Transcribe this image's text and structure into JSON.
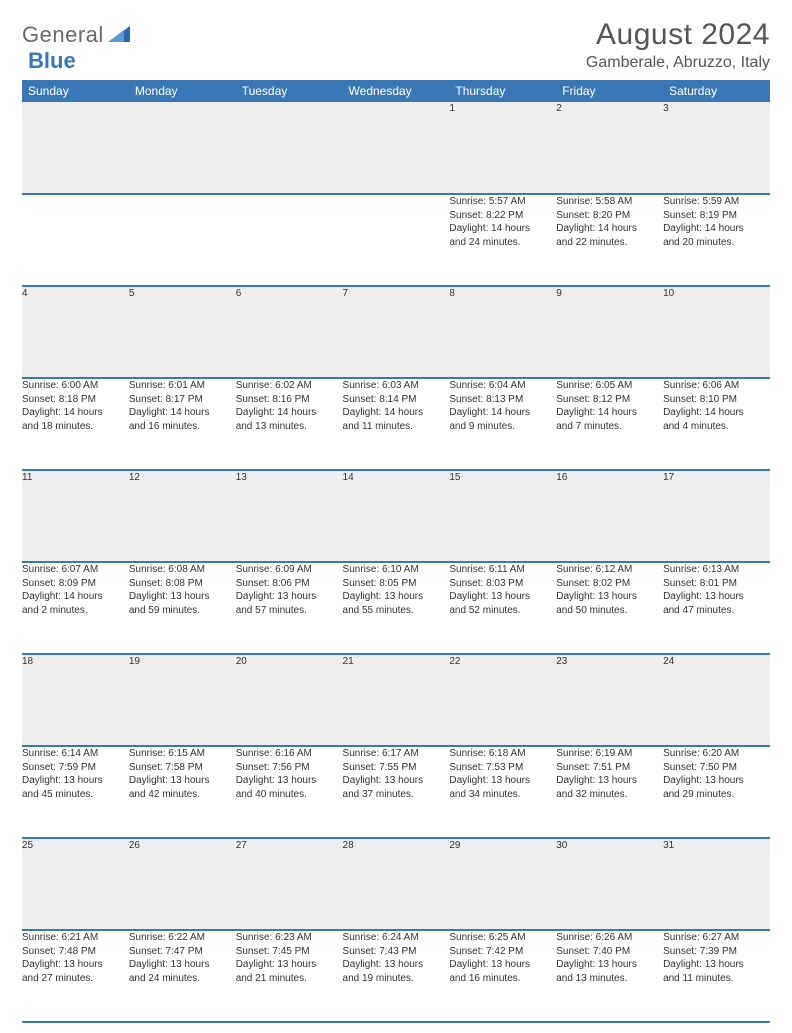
{
  "logo": {
    "partA": "General",
    "partB": "Blue"
  },
  "title": "August 2024",
  "location": "Gamberale, Abruzzo, Italy",
  "header_bg": "#3a78b5",
  "daynum_bg": "#eeeeee",
  "rule_color": "#3a78b5",
  "text_color": "#333333",
  "day_names": [
    "Sunday",
    "Monday",
    "Tuesday",
    "Wednesday",
    "Thursday",
    "Friday",
    "Saturday"
  ],
  "weeks": [
    [
      null,
      null,
      null,
      null,
      {
        "n": "1",
        "sr": "Sunrise: 5:57 AM",
        "ss": "Sunset: 8:22 PM",
        "d1": "Daylight: 14 hours",
        "d2": "and 24 minutes."
      },
      {
        "n": "2",
        "sr": "Sunrise: 5:58 AM",
        "ss": "Sunset: 8:20 PM",
        "d1": "Daylight: 14 hours",
        "d2": "and 22 minutes."
      },
      {
        "n": "3",
        "sr": "Sunrise: 5:59 AM",
        "ss": "Sunset: 8:19 PM",
        "d1": "Daylight: 14 hours",
        "d2": "and 20 minutes."
      }
    ],
    [
      {
        "n": "4",
        "sr": "Sunrise: 6:00 AM",
        "ss": "Sunset: 8:18 PM",
        "d1": "Daylight: 14 hours",
        "d2": "and 18 minutes."
      },
      {
        "n": "5",
        "sr": "Sunrise: 6:01 AM",
        "ss": "Sunset: 8:17 PM",
        "d1": "Daylight: 14 hours",
        "d2": "and 16 minutes."
      },
      {
        "n": "6",
        "sr": "Sunrise: 6:02 AM",
        "ss": "Sunset: 8:16 PM",
        "d1": "Daylight: 14 hours",
        "d2": "and 13 minutes."
      },
      {
        "n": "7",
        "sr": "Sunrise: 6:03 AM",
        "ss": "Sunset: 8:14 PM",
        "d1": "Daylight: 14 hours",
        "d2": "and 11 minutes."
      },
      {
        "n": "8",
        "sr": "Sunrise: 6:04 AM",
        "ss": "Sunset: 8:13 PM",
        "d1": "Daylight: 14 hours",
        "d2": "and 9 minutes."
      },
      {
        "n": "9",
        "sr": "Sunrise: 6:05 AM",
        "ss": "Sunset: 8:12 PM",
        "d1": "Daylight: 14 hours",
        "d2": "and 7 minutes."
      },
      {
        "n": "10",
        "sr": "Sunrise: 6:06 AM",
        "ss": "Sunset: 8:10 PM",
        "d1": "Daylight: 14 hours",
        "d2": "and 4 minutes."
      }
    ],
    [
      {
        "n": "11",
        "sr": "Sunrise: 6:07 AM",
        "ss": "Sunset: 8:09 PM",
        "d1": "Daylight: 14 hours",
        "d2": "and 2 minutes."
      },
      {
        "n": "12",
        "sr": "Sunrise: 6:08 AM",
        "ss": "Sunset: 8:08 PM",
        "d1": "Daylight: 13 hours",
        "d2": "and 59 minutes."
      },
      {
        "n": "13",
        "sr": "Sunrise: 6:09 AM",
        "ss": "Sunset: 8:06 PM",
        "d1": "Daylight: 13 hours",
        "d2": "and 57 minutes."
      },
      {
        "n": "14",
        "sr": "Sunrise: 6:10 AM",
        "ss": "Sunset: 8:05 PM",
        "d1": "Daylight: 13 hours",
        "d2": "and 55 minutes."
      },
      {
        "n": "15",
        "sr": "Sunrise: 6:11 AM",
        "ss": "Sunset: 8:03 PM",
        "d1": "Daylight: 13 hours",
        "d2": "and 52 minutes."
      },
      {
        "n": "16",
        "sr": "Sunrise: 6:12 AM",
        "ss": "Sunset: 8:02 PM",
        "d1": "Daylight: 13 hours",
        "d2": "and 50 minutes."
      },
      {
        "n": "17",
        "sr": "Sunrise: 6:13 AM",
        "ss": "Sunset: 8:01 PM",
        "d1": "Daylight: 13 hours",
        "d2": "and 47 minutes."
      }
    ],
    [
      {
        "n": "18",
        "sr": "Sunrise: 6:14 AM",
        "ss": "Sunset: 7:59 PM",
        "d1": "Daylight: 13 hours",
        "d2": "and 45 minutes."
      },
      {
        "n": "19",
        "sr": "Sunrise: 6:15 AM",
        "ss": "Sunset: 7:58 PM",
        "d1": "Daylight: 13 hours",
        "d2": "and 42 minutes."
      },
      {
        "n": "20",
        "sr": "Sunrise: 6:16 AM",
        "ss": "Sunset: 7:56 PM",
        "d1": "Daylight: 13 hours",
        "d2": "and 40 minutes."
      },
      {
        "n": "21",
        "sr": "Sunrise: 6:17 AM",
        "ss": "Sunset: 7:55 PM",
        "d1": "Daylight: 13 hours",
        "d2": "and 37 minutes."
      },
      {
        "n": "22",
        "sr": "Sunrise: 6:18 AM",
        "ss": "Sunset: 7:53 PM",
        "d1": "Daylight: 13 hours",
        "d2": "and 34 minutes."
      },
      {
        "n": "23",
        "sr": "Sunrise: 6:19 AM",
        "ss": "Sunset: 7:51 PM",
        "d1": "Daylight: 13 hours",
        "d2": "and 32 minutes."
      },
      {
        "n": "24",
        "sr": "Sunrise: 6:20 AM",
        "ss": "Sunset: 7:50 PM",
        "d1": "Daylight: 13 hours",
        "d2": "and 29 minutes."
      }
    ],
    [
      {
        "n": "25",
        "sr": "Sunrise: 6:21 AM",
        "ss": "Sunset: 7:48 PM",
        "d1": "Daylight: 13 hours",
        "d2": "and 27 minutes."
      },
      {
        "n": "26",
        "sr": "Sunrise: 6:22 AM",
        "ss": "Sunset: 7:47 PM",
        "d1": "Daylight: 13 hours",
        "d2": "and 24 minutes."
      },
      {
        "n": "27",
        "sr": "Sunrise: 6:23 AM",
        "ss": "Sunset: 7:45 PM",
        "d1": "Daylight: 13 hours",
        "d2": "and 21 minutes."
      },
      {
        "n": "28",
        "sr": "Sunrise: 6:24 AM",
        "ss": "Sunset: 7:43 PM",
        "d1": "Daylight: 13 hours",
        "d2": "and 19 minutes."
      },
      {
        "n": "29",
        "sr": "Sunrise: 6:25 AM",
        "ss": "Sunset: 7:42 PM",
        "d1": "Daylight: 13 hours",
        "d2": "and 16 minutes."
      },
      {
        "n": "30",
        "sr": "Sunrise: 6:26 AM",
        "ss": "Sunset: 7:40 PM",
        "d1": "Daylight: 13 hours",
        "d2": "and 13 minutes."
      },
      {
        "n": "31",
        "sr": "Sunrise: 6:27 AM",
        "ss": "Sunset: 7:39 PM",
        "d1": "Daylight: 13 hours",
        "d2": "and 11 minutes."
      }
    ]
  ]
}
